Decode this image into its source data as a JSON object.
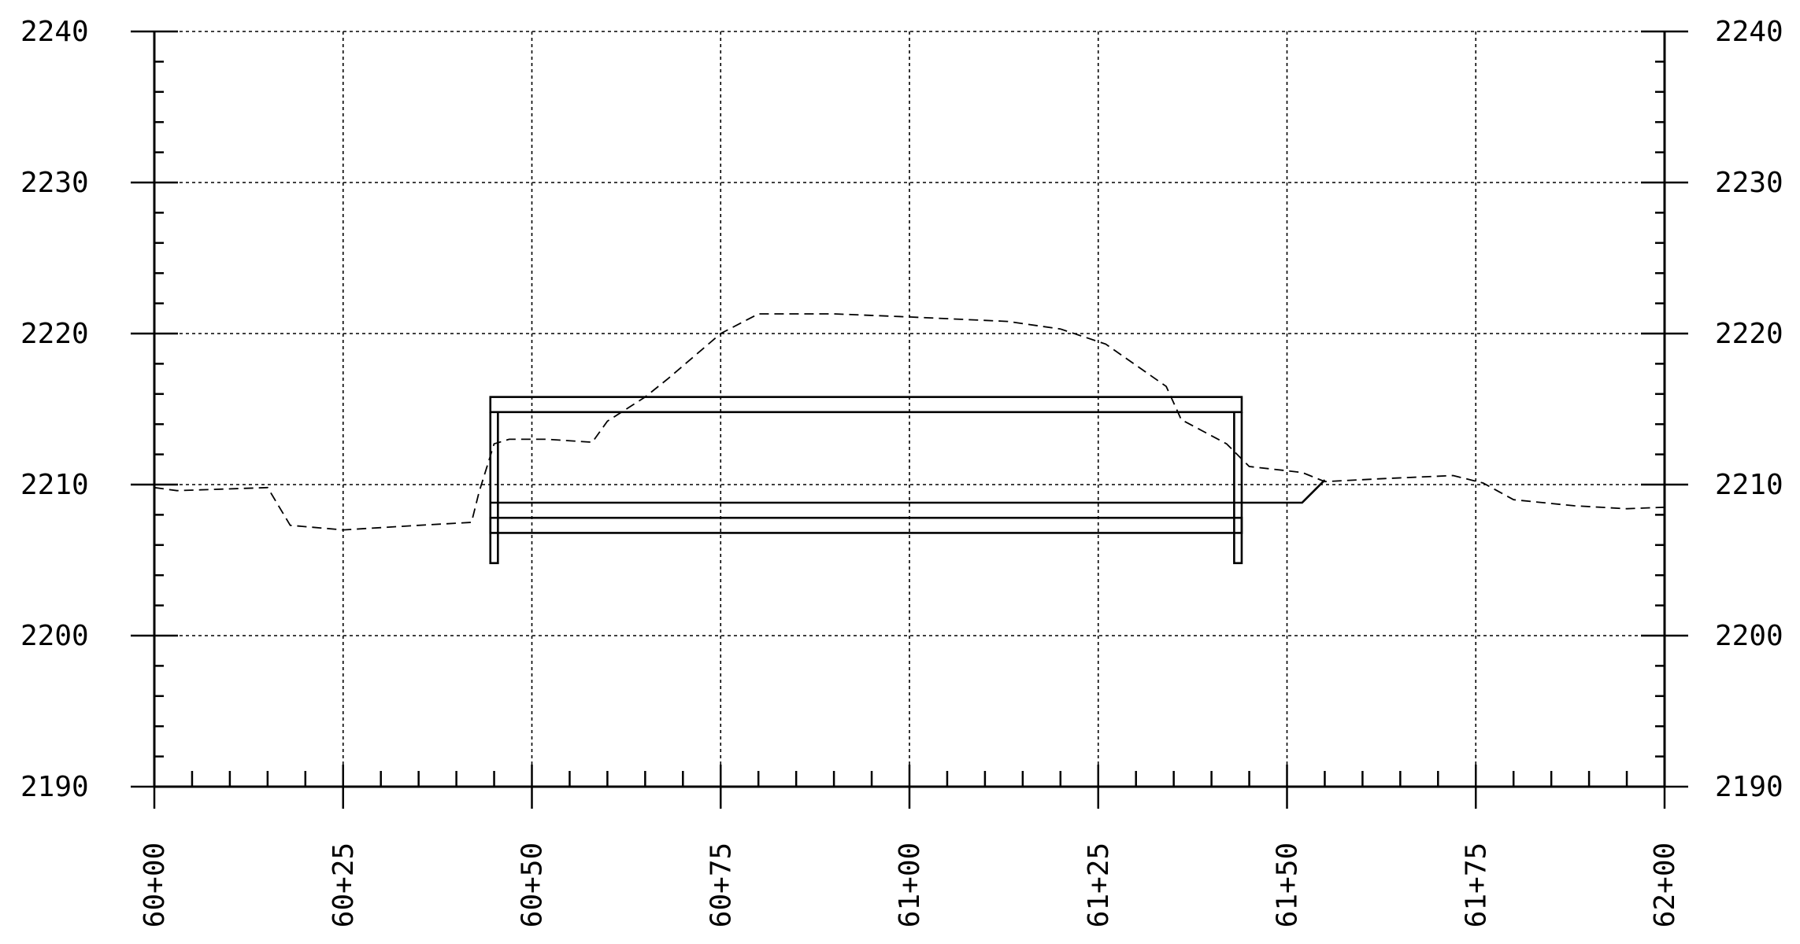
{
  "chart_data": {
    "type": "line",
    "title": "",
    "xlabel": "",
    "ylabel": "",
    "xlim": [
      6000,
      6200
    ],
    "ylim": [
      2190,
      2240
    ],
    "grid": true,
    "x_major_ticks": [
      6000,
      6025,
      6050,
      6075,
      6100,
      6125,
      6150,
      6175,
      6200
    ],
    "x_tick_labels": [
      "60+00",
      "60+25",
      "60+50",
      "60+75",
      "61+00",
      "61+25",
      "61+50",
      "61+75",
      "62+00"
    ],
    "x_minor_step": 5,
    "y_major_ticks": [
      2190,
      2200,
      2210,
      2220,
      2230,
      2240
    ],
    "y_tick_labels": [
      "2190",
      "2200",
      "2210",
      "2220",
      "2230",
      "2240"
    ],
    "y_minor_step": 2,
    "series": [
      {
        "style": "dashed",
        "x": [
          6000,
          6003,
          6015,
          6018,
          6025,
          6035,
          6042,
          6043,
          6045,
          6047,
          6052,
          6058,
          6060,
          6065,
          6068,
          6075,
          6080,
          6090,
          6100,
          6113,
          6120,
          6126,
          6134,
          6136,
          6142,
          6145,
          6152,
          6155,
          6163,
          6172,
          6176,
          6180,
          6188,
          6195,
          6200
        ],
        "y": [
          2209.8,
          2209.6,
          2209.8,
          2207.3,
          2207.0,
          2207.3,
          2207.5,
          2209.5,
          2212.7,
          2213.0,
          2213.0,
          2212.8,
          2214.2,
          2215.8,
          2217.0,
          2220.0,
          2221.3,
          2221.3,
          2221.1,
          2220.8,
          2220.3,
          2219.3,
          2216.5,
          2214.3,
          2212.7,
          2211.2,
          2210.8,
          2210.2,
          2210.4,
          2210.6,
          2210.1,
          2209.0,
          2208.6,
          2208.4,
          2208.5
        ]
      },
      {
        "style": "solid",
        "x": [
          6044.5,
          6146,
          6152,
          6155
        ],
        "y": [
          2208.8,
          2208.8,
          2208.8,
          2210.3
        ]
      }
    ],
    "structure": {
      "x_left": 6044.5,
      "x_right": 6144,
      "top_deck": [
        2215.8,
        2214.8
      ],
      "bottom_slab": [
        2207.8,
        2206.8
      ],
      "wall_inner_left": 6045.5,
      "wall_inner_right": 6143,
      "footing_bottom": 2204.8
    }
  }
}
